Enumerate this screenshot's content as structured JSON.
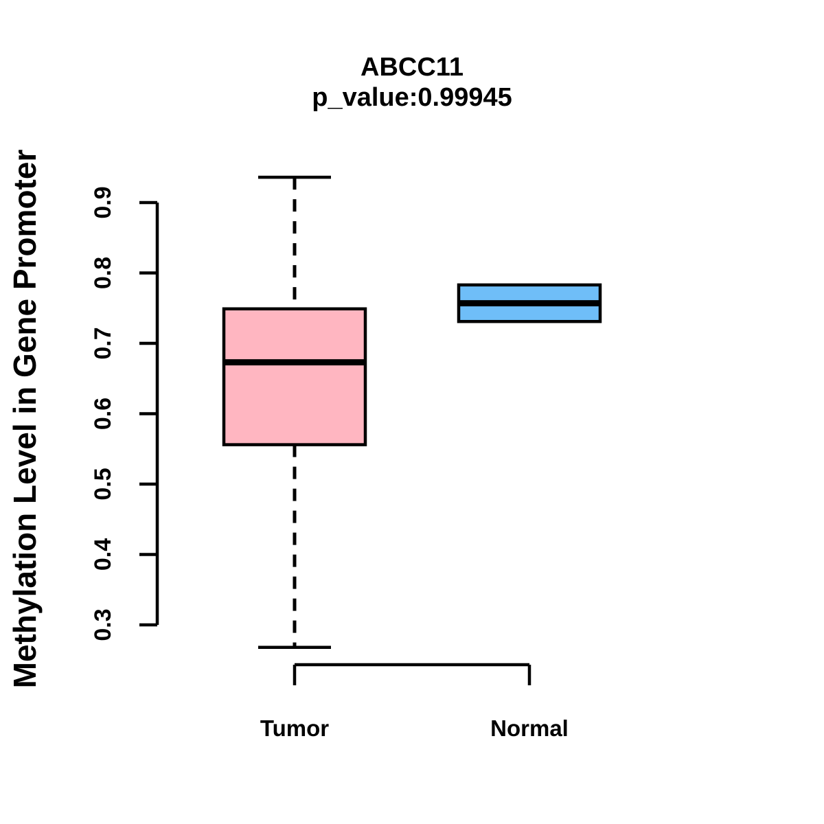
{
  "chart_data": {
    "type": "boxplot",
    "title": "ABCC11",
    "subtitle": "p_value:0.99945",
    "ylabel": "Methylation Level in Gene Promoter",
    "xlabel": "",
    "ylim": [
      0.3,
      0.9
    ],
    "yticks": [
      0.3,
      0.4,
      0.5,
      0.6,
      0.7,
      0.8,
      0.9
    ],
    "ytick_labels": [
      "0.3",
      "0.4",
      "0.5",
      "0.6",
      "0.7",
      "0.8",
      "0.9"
    ],
    "categories": [
      "Tumor",
      "Normal"
    ],
    "series": [
      {
        "name": "Tumor",
        "whisker_low": 0.268,
        "q1": 0.556,
        "median": 0.673,
        "q3": 0.749,
        "whisker_high": 0.936,
        "fill": "#FFB6C1"
      },
      {
        "name": "Normal",
        "whisker_low": 0.731,
        "q1": 0.731,
        "median": 0.757,
        "q3": 0.783,
        "whisker_high": 0.783,
        "fill": "#6FBEF8"
      }
    ],
    "colors": {
      "line": "#000000",
      "background": "#FFFFFF",
      "tumor_fill": "#FFB6C1",
      "normal_fill": "#6FBEF8"
    },
    "grid": false,
    "legend": "none"
  }
}
